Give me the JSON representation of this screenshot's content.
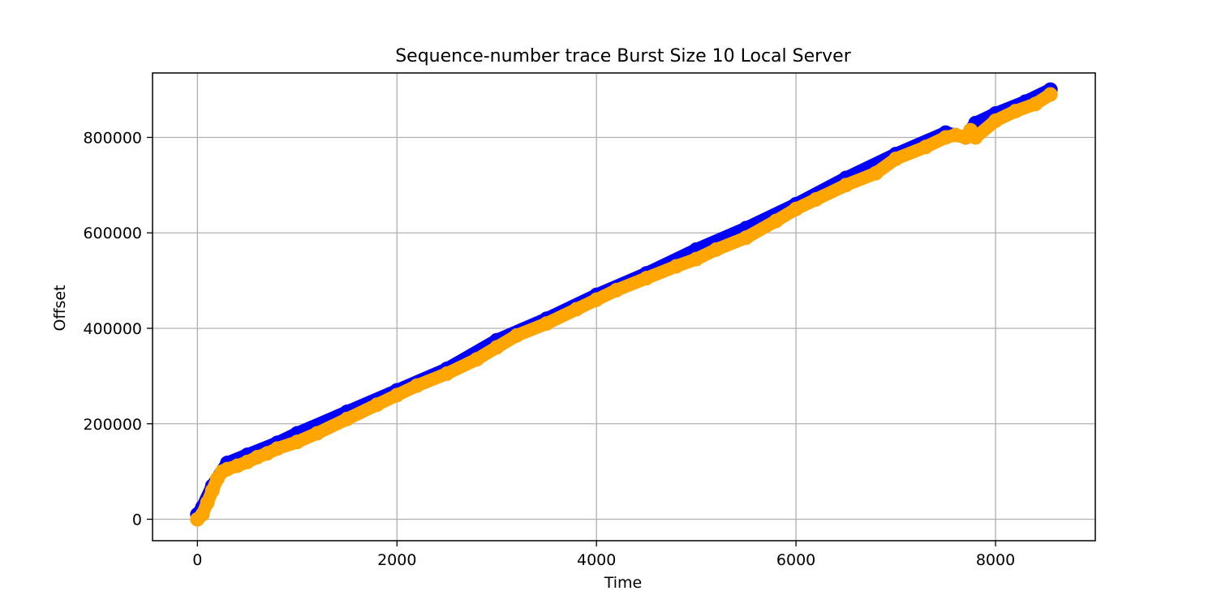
{
  "chart_data": {
    "type": "scatter",
    "title": "Sequence-number trace Burst Size 10 Local Server",
    "xlabel": "Time",
    "ylabel": "Offset",
    "xlim": [
      -450,
      9000
    ],
    "ylim": [
      -45000,
      935000
    ],
    "xticks": [
      0,
      2000,
      4000,
      6000,
      8000
    ],
    "yticks": [
      0,
      200000,
      400000,
      600000,
      800000
    ],
    "xtick_labels": [
      "0",
      "2000",
      "4000",
      "6000",
      "8000"
    ],
    "ytick_labels": [
      "0",
      "200000",
      "400000",
      "600000",
      "800000"
    ],
    "grid": true,
    "legend": "none",
    "series": [
      {
        "color": "#0000ff",
        "x": [
          0,
          50,
          150,
          300,
          500,
          800,
          1000,
          1500,
          2000,
          2500,
          3000,
          3500,
          4000,
          4500,
          5000,
          5500,
          6000,
          6500,
          7000,
          7500,
          7700,
          7800,
          8000,
          8300,
          8550
        ],
        "y": [
          10000,
          25000,
          70000,
          118000,
          135000,
          160000,
          180000,
          225000,
          270000,
          315000,
          375000,
          420000,
          470000,
          515000,
          565000,
          610000,
          660000,
          715000,
          765000,
          810000,
          800000,
          830000,
          850000,
          875000,
          900000
        ]
      },
      {
        "color": "#ffa500",
        "x": [
          0,
          50,
          100,
          150,
          200,
          250,
          300,
          400,
          500,
          600,
          700,
          800,
          1000,
          1200,
          1500,
          1800,
          2000,
          2200,
          2500,
          2800,
          3000,
          3200,
          3500,
          3800,
          4000,
          4200,
          4500,
          4800,
          5000,
          5200,
          5500,
          5800,
          6000,
          6200,
          6500,
          6800,
          7000,
          7300,
          7500,
          7600,
          7700,
          7750,
          7800,
          8000,
          8200,
          8400,
          8550
        ],
        "y": [
          0,
          10000,
          35000,
          60000,
          85000,
          100000,
          105000,
          112000,
          120000,
          130000,
          138000,
          148000,
          162000,
          180000,
          210000,
          240000,
          260000,
          280000,
          305000,
          335000,
          360000,
          385000,
          410000,
          440000,
          460000,
          480000,
          505000,
          530000,
          545000,
          565000,
          590000,
          625000,
          650000,
          670000,
          700000,
          725000,
          755000,
          780000,
          800000,
          805000,
          800000,
          815000,
          800000,
          835000,
          855000,
          870000,
          890000
        ]
      }
    ]
  }
}
